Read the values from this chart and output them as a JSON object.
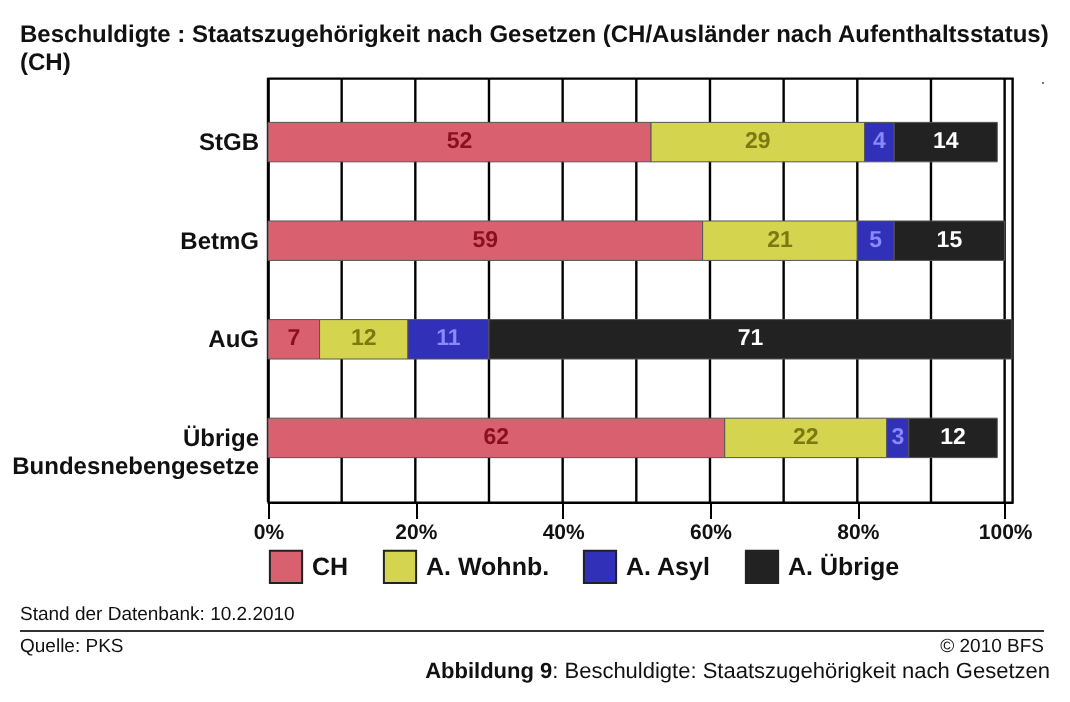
{
  "chart_data": {
    "type": "bar",
    "orientation": "horizontal",
    "stacked": true,
    "data_labels": true,
    "title": "Beschuldigte : Staatszugehörigkeit nach Gesetzen (CH/Ausländer nach Aufenthaltsstatus) (CH)",
    "categories": [
      "StGB",
      "BetmG",
      "AuG",
      "Übrige Bundesnebengesetze"
    ],
    "series": [
      {
        "name": "CH",
        "color": "#d9606e",
        "values": [
          52,
          59,
          7,
          62
        ]
      },
      {
        "name": "A. Wohnb.",
        "color": "#d4d44e",
        "values": [
          29,
          21,
          12,
          22
        ]
      },
      {
        "name": "A. Asyl",
        "color": "#3030b8",
        "values": [
          4,
          5,
          11,
          3
        ]
      },
      {
        "name": "A. Übrige",
        "color": "#222222",
        "values": [
          14,
          15,
          71,
          12
        ]
      }
    ],
    "xlim": [
      0,
      101
    ],
    "xticks": [
      {
        "value": 0,
        "label": "0%"
      },
      {
        "value": 10,
        "label": null
      },
      {
        "value": 20,
        "label": "20%"
      },
      {
        "value": 30,
        "label": null
      },
      {
        "value": 40,
        "label": "40%"
      },
      {
        "value": 50,
        "label": null
      },
      {
        "value": 60,
        "label": "60%"
      },
      {
        "value": 70,
        "label": null
      },
      {
        "value": 80,
        "label": "80%"
      },
      {
        "value": 90,
        "label": null
      },
      {
        "value": 100,
        "label": "100%"
      }
    ],
    "grid": "x",
    "legend": "bottom",
    "annotations": [
      "Stand der Datenbank: 10.2.2010",
      "Quelle: PKS",
      "© 2010 BFS",
      "Abbildung 9: Beschuldigte: Staatszugehörigkeit nach Gesetzen"
    ]
  }
}
